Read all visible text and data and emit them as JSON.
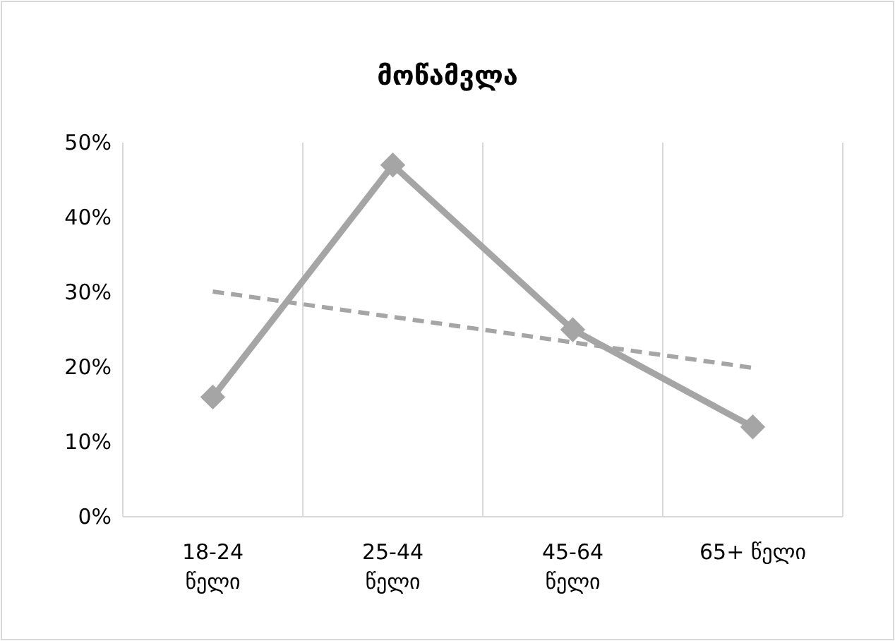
{
  "chart_data": {
    "type": "line",
    "title": "მოწამვლა",
    "categories": [
      "18-24 წელი",
      "25-44 წელი",
      "45-64 წელი",
      "65+ წელი"
    ],
    "series": [
      {
        "color": "#a5a5a5",
        "values": [
          16,
          47,
          25,
          12
        ],
        "marker": "diamond",
        "line_style": "solid"
      },
      {
        "color": "#a5a5a5",
        "values": [
          30.1,
          26.7,
          23.3,
          19.9
        ],
        "marker": "none",
        "line_style": "dashed"
      }
    ],
    "ylim": [
      0,
      50
    ],
    "yticks": [
      {
        "value": 0,
        "label": "0%"
      },
      {
        "value": 10,
        "label": "10%"
      },
      {
        "value": 20,
        "label": "20%"
      },
      {
        "value": 30,
        "label": "30%"
      },
      {
        "value": 40,
        "label": "40%"
      },
      {
        "value": 50,
        "label": "50%"
      }
    ],
    "grid": "x"
  }
}
